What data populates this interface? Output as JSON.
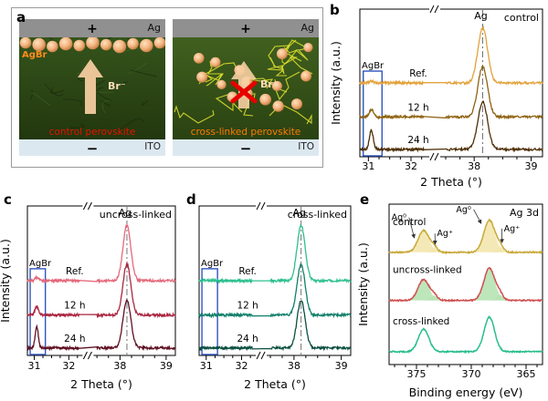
{
  "panel_letters": {
    "a": "a",
    "b": "b",
    "c": "c",
    "d": "d",
    "e": "e"
  },
  "schematic": {
    "left": {
      "electrode_label": "Ag",
      "plus": "+",
      "minus": "−",
      "substrate_label": "ITO",
      "particle_label": "AgBr",
      "region_label": "control perovskite",
      "arrow_label": "Br⁻"
    },
    "right": {
      "electrode_label": "Ag",
      "plus": "+",
      "minus": "−",
      "substrate_label": "ITO",
      "region_label": "cross-linked perovskite",
      "arrow_label": "Br⁻"
    },
    "colors": {
      "electrode": "#909090",
      "substrate": "#dce8f0",
      "perovskite_left_top": "#35541c",
      "perovskite_left_bottom": "#22370e",
      "perovskite_right_top": "#40601f",
      "perovskite_right_bottom": "#2a4212",
      "particle": "#f2b27e",
      "network": "#e6e62e",
      "arrow": "#f7cfa2",
      "cross_mark": "#e60000",
      "left_region_label_color": "#e81000",
      "right_region_label_color": "#ff7a00",
      "particle_label_color": "#ff8c1a",
      "arrow_label_color": "#ffdcb8"
    }
  },
  "chart_data": [
    {
      "id": "b",
      "type": "line",
      "kind": "xrd",
      "title": "control",
      "xlabel": "2 Theta (°)",
      "ylabel": "Intensity (a.u.)",
      "x_segments": [
        [
          30.8,
          32.3
        ],
        [
          37.5,
          39.2
        ]
      ],
      "x_ticks": [
        31,
        32,
        38,
        39
      ],
      "ag_line": {
        "x": 38.15,
        "label": "Ag"
      },
      "agbr_box": {
        "x0": 30.88,
        "x1": 31.32,
        "label": "AgBr",
        "color": "#2f55c2",
        "height_frac": 0.58
      },
      "series": [
        {
          "name": "Ref.",
          "color": "#e2a23b",
          "offset": 0.5,
          "peaks": [
            {
              "c": 38.15,
              "h": 0.37,
              "w": 0.085
            },
            {
              "c": 31.07,
              "h": 0.012,
              "w": 0.05
            }
          ]
        },
        {
          "name": "12 h",
          "color": "#8f6312",
          "offset": 0.27,
          "peaks": [
            {
              "c": 38.15,
              "h": 0.34,
              "w": 0.085
            },
            {
              "c": 31.07,
              "h": 0.05,
              "w": 0.05
            }
          ]
        },
        {
          "name": "24 h",
          "color": "#4e3007",
          "offset": 0.05,
          "peaks": [
            {
              "c": 38.15,
              "h": 0.32,
              "w": 0.085
            },
            {
              "c": 31.07,
              "h": 0.13,
              "w": 0.045
            }
          ]
        }
      ]
    },
    {
      "id": "c",
      "type": "line",
      "kind": "xrd",
      "title": "uncross-linked",
      "xlabel": "2 Theta (°)",
      "ylabel": "Intensity (a.u.)",
      "x_segments": [
        [
          30.8,
          32.3
        ],
        [
          37.5,
          39.2
        ]
      ],
      "x_ticks": [
        31,
        32,
        38,
        39
      ],
      "ag_line": {
        "x": 38.15,
        "label": "Ag"
      },
      "agbr_box": {
        "x0": 30.88,
        "x1": 31.32,
        "label": "AgBr",
        "color": "#2f55c2",
        "height_frac": 0.58
      },
      "series": [
        {
          "name": "Ref.",
          "color": "#e4687a",
          "offset": 0.5,
          "peaks": [
            {
              "c": 38.15,
              "h": 0.37,
              "w": 0.085
            },
            {
              "c": 31.07,
              "h": 0.02,
              "w": 0.05
            }
          ]
        },
        {
          "name": "12 h",
          "color": "#ab2540",
          "offset": 0.27,
          "peaks": [
            {
              "c": 38.15,
              "h": 0.34,
              "w": 0.085
            },
            {
              "c": 31.07,
              "h": 0.06,
              "w": 0.05
            }
          ]
        },
        {
          "name": "24 h",
          "color": "#5f1022",
          "offset": 0.05,
          "peaks": [
            {
              "c": 38.15,
              "h": 0.32,
              "w": 0.085
            },
            {
              "c": 31.07,
              "h": 0.14,
              "w": 0.045
            }
          ]
        }
      ]
    },
    {
      "id": "d",
      "type": "line",
      "kind": "xrd",
      "title": "cross-linked",
      "xlabel": "2 Theta (°)",
      "x_segments": [
        [
          30.8,
          32.3
        ],
        [
          37.5,
          39.2
        ]
      ],
      "x_ticks": [
        31,
        32,
        38,
        39
      ],
      "ag_line": {
        "x": 38.15,
        "label": "Ag"
      },
      "agbr_box": {
        "x0": 30.88,
        "x1": 31.32,
        "label": "AgBr",
        "color": "#2f55c2",
        "height_frac": 0.58
      },
      "series": [
        {
          "name": "Ref.",
          "color": "#2ec08e",
          "offset": 0.5,
          "peaks": [
            {
              "c": 38.15,
              "h": 0.37,
              "w": 0.085
            }
          ]
        },
        {
          "name": "12 h",
          "color": "#128069",
          "offset": 0.27,
          "peaks": [
            {
              "c": 38.15,
              "h": 0.34,
              "w": 0.085
            }
          ]
        },
        {
          "name": "24 h",
          "color": "#0b4f40",
          "offset": 0.05,
          "peaks": [
            {
              "c": 38.15,
              "h": 0.32,
              "w": 0.085
            }
          ]
        }
      ]
    },
    {
      "id": "e",
      "type": "line",
      "kind": "xps",
      "title": "Ag 3d",
      "xlabel": "Binding energy (eV)",
      "ylabel": "Intensity (a.u.)",
      "x_range": [
        377.5,
        363.5
      ],
      "x_ticks": [
        375,
        370,
        365
      ],
      "series": [
        {
          "name": "control",
          "color": "#c7a93a",
          "offset": 0.7,
          "fill_color": "#f3e7ae",
          "peaks": [
            {
              "c": 374.35,
              "h": 0.135,
              "w": 0.5
            },
            {
              "c": 373.4,
              "h": 0.03,
              "w": 0.3
            },
            {
              "c": 368.35,
              "h": 0.2,
              "w": 0.5
            },
            {
              "c": 367.4,
              "h": 0.035,
              "w": 0.3
            }
          ],
          "annotations": [
            {
              "label": "Ag⁰",
              "x": 376.6,
              "yf": 0.9,
              "tx": 375.2,
              "tyf": 0.79
            },
            {
              "label": "Ag⁺",
              "x": 372.4,
              "yf": 0.8,
              "tx": 373.3,
              "tyf": 0.75
            },
            {
              "label": "Ag⁰",
              "x": 370.7,
              "yf": 0.95,
              "tx": 369.1,
              "tyf": 0.88
            },
            {
              "label": "Ag⁺",
              "x": 366.3,
              "yf": 0.83,
              "tx": 367.2,
              "tyf": 0.76
            }
          ]
        },
        {
          "name": "uncross-linked",
          "color": "#cf4f4f",
          "offset": 0.4,
          "fill_color": "#b7e3b4",
          "peaks": [
            {
              "c": 374.35,
              "h": 0.13,
              "w": 0.5
            },
            {
              "c": 373.4,
              "h": 0.03,
              "w": 0.3
            },
            {
              "c": 368.35,
              "h": 0.2,
              "w": 0.5
            },
            {
              "c": 367.4,
              "h": 0.035,
              "w": 0.3
            }
          ]
        },
        {
          "name": "cross-linked",
          "color": "#28bd8e",
          "offset": 0.08,
          "peaks": [
            {
              "c": 374.35,
              "h": 0.14,
              "w": 0.48
            },
            {
              "c": 368.35,
              "h": 0.215,
              "w": 0.48
            }
          ]
        }
      ]
    }
  ]
}
